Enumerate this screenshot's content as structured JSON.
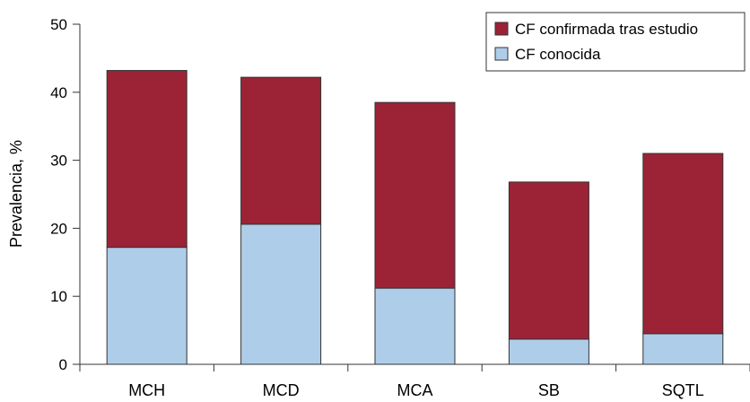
{
  "chart_data": {
    "type": "bar",
    "stacked": true,
    "categories": [
      "MCH",
      "MCD",
      "MCA",
      "SB",
      "SQTL"
    ],
    "series": [
      {
        "name": "CF conocida",
        "values": [
          17.2,
          20.6,
          11.2,
          3.7,
          4.5
        ],
        "color": "#aecde9"
      },
      {
        "name": "CF confirmada tras estudio",
        "values": [
          26.0,
          21.6,
          27.3,
          23.1,
          26.5
        ],
        "color": "#9b2335"
      }
    ],
    "ylabel": "Prevalencia, %",
    "xlabel": "",
    "ylim": [
      0,
      50
    ],
    "yticks": [
      0,
      10,
      20,
      30,
      40,
      50
    ],
    "grid": false,
    "legend_position": "top-right",
    "legend_order": [
      "CF confirmada tras estudio",
      "CF conocida"
    ]
  }
}
